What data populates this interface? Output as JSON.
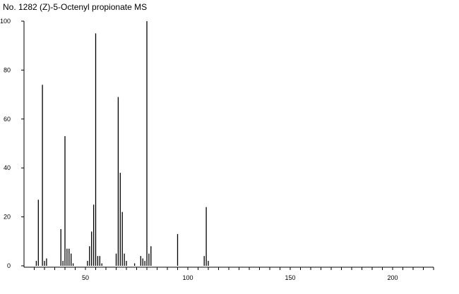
{
  "chart_data": {
    "type": "bar",
    "title": "No. 1282 (Z)-5-Octenyl propionate MS",
    "xlabel": "",
    "ylabel": "",
    "xlim": [
      20,
      220
    ],
    "ylim": [
      0,
      100
    ],
    "grid": false,
    "x_ticks": [
      50,
      100,
      150,
      200
    ],
    "y_ticks": [
      0,
      20,
      40,
      60,
      80,
      100
    ],
    "x": [
      26,
      27,
      29,
      30,
      31,
      38,
      39,
      40,
      41,
      42,
      43,
      44,
      51,
      52,
      53,
      54,
      55,
      56,
      57,
      58,
      65,
      66,
      67,
      68,
      69,
      70,
      74,
      77,
      78,
      79,
      80,
      81,
      82,
      95,
      108,
      109,
      110
    ],
    "values": [
      2,
      27,
      74,
      2,
      3,
      15,
      2,
      53,
      7,
      7,
      5,
      1,
      2,
      8,
      14,
      25,
      95,
      4,
      4,
      1,
      5,
      69,
      38,
      22,
      5,
      2,
      1,
      4,
      3,
      2,
      100,
      5,
      8,
      13,
      4,
      24,
      2
    ]
  }
}
